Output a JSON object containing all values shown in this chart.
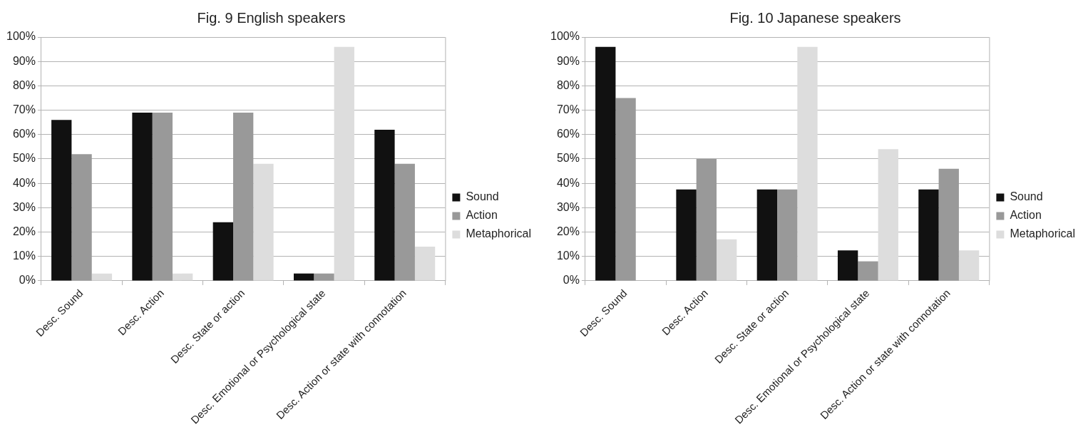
{
  "chart_data": [
    {
      "type": "bar",
      "title": "Fig. 9 English speakers",
      "categories": [
        "Desc. Sound",
        "Desc. Action",
        "Desc. State or action",
        "Desc. Emotional or Psychological state",
        "Desc. Action or state with connotation"
      ],
      "series": [
        {
          "name": "Sound",
          "color": "#111111",
          "values": [
            66,
            69,
            24,
            3,
            62
          ]
        },
        {
          "name": "Action",
          "color": "#999999",
          "values": [
            52,
            69,
            69,
            3,
            48
          ]
        },
        {
          "name": "Metaphorical",
          "color": "#dddddd",
          "values": [
            3,
            3,
            48,
            96,
            14
          ]
        }
      ],
      "ylim": [
        0,
        100
      ],
      "yticks": [
        {
          "value": 0,
          "label": "0%"
        },
        {
          "value": 10,
          "label": "10%"
        },
        {
          "value": 20,
          "label": "20%"
        },
        {
          "value": 30,
          "label": "30%"
        },
        {
          "value": 40,
          "label": "40%"
        },
        {
          "value": 50,
          "label": "50%"
        },
        {
          "value": 60,
          "label": "60%"
        },
        {
          "value": 70,
          "label": "70%"
        },
        {
          "value": 80,
          "label": "80%"
        },
        {
          "value": 90,
          "label": "90%"
        },
        {
          "value": 100,
          "label": "100%"
        }
      ],
      "grid": "y",
      "legend": "right"
    },
    {
      "type": "bar",
      "title": "Fig. 10 Japanese speakers",
      "categories": [
        "Desc. Sound",
        "Desc. Action",
        "Desc. State or action",
        "Desc. Emotional or Psychological state",
        "Desc. Action or state with connotation"
      ],
      "series": [
        {
          "name": "Sound",
          "color": "#111111",
          "values": [
            96,
            37.5,
            37.5,
            12.5,
            37.5
          ]
        },
        {
          "name": "Action",
          "color": "#999999",
          "values": [
            75,
            50,
            37.5,
            8,
            46
          ]
        },
        {
          "name": "Metaphorical",
          "color": "#dddddd",
          "values": [
            0,
            17,
            96,
            54,
            12.5
          ]
        }
      ],
      "ylim": [
        0,
        100
      ],
      "yticks": [
        {
          "value": 0,
          "label": "0%"
        },
        {
          "value": 10,
          "label": "10%"
        },
        {
          "value": 20,
          "label": "20%"
        },
        {
          "value": 30,
          "label": "30%"
        },
        {
          "value": 40,
          "label": "40%"
        },
        {
          "value": 50,
          "label": "50%"
        },
        {
          "value": 60,
          "label": "60%"
        },
        {
          "value": 70,
          "label": "70%"
        },
        {
          "value": 80,
          "label": "80%"
        },
        {
          "value": 90,
          "label": "90%"
        },
        {
          "value": 100,
          "label": "100%"
        }
      ],
      "grid": "y",
      "legend": "right"
    }
  ]
}
